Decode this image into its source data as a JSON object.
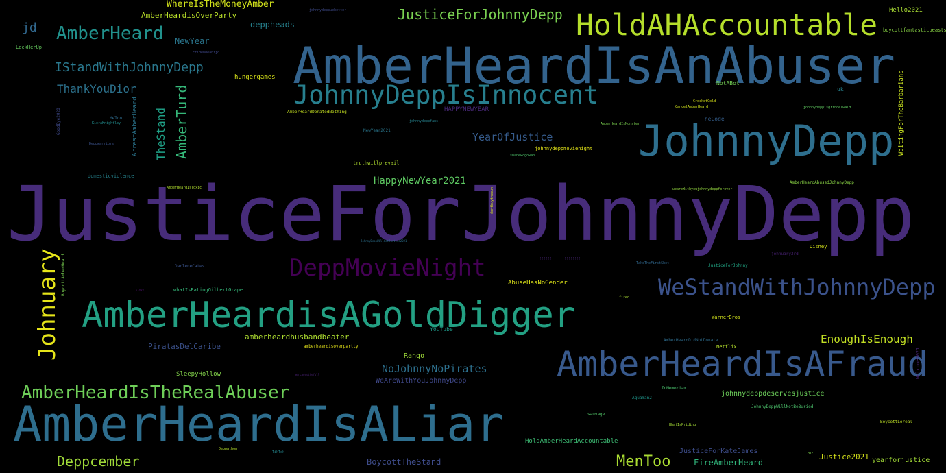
{
  "words": {
    "w0": {
      "text": "JusticeForJohnnyDepp",
      "color": "#472c7a"
    },
    "w1": {
      "text": "AmberHeardIsAnAbuser",
      "color": "#33638d"
    },
    "w2": {
      "text": "AmberHeardIsALiar",
      "color": "#2e6e8e"
    },
    "w3": {
      "text": "JohnnyDepp",
      "color": "#2e6f8e"
    },
    "w4": {
      "text": "AmberHeardisAGoldDigger",
      "color": "#23a083"
    },
    "w5": {
      "text": "AmberHeardIsAFraud",
      "color": "#38598c"
    },
    "w6": {
      "text": "HoldAHAccountable",
      "color": "#b5de2b"
    },
    "w7": {
      "text": "JohnnyDeppIsInnocent",
      "color": "#277f8e"
    },
    "w8": {
      "text": "WeStandWithJohnnyDepp",
      "color": "#3b528b"
    },
    "w9": {
      "text": "DeppMovieNight",
      "color": "#440154"
    },
    "w10": {
      "text": "AmberHeardIsTheRealAbuser",
      "color": "#6ece58"
    },
    "w11": {
      "text": "Johnuary",
      "color": "#e5e419"
    },
    "w12": {
      "text": "AmberHeard",
      "color": "#21918c"
    },
    "w13": {
      "text": "JusticeForJohnnyDepp",
      "color": "#7ad151"
    },
    "w14": {
      "text": "IStandWithJohnnyDepp",
      "color": "#2a788e"
    },
    "w15": {
      "text": "Deppcember",
      "color": "#a0da39"
    },
    "w16": {
      "text": "MenToo",
      "color": "#aadc32"
    },
    "w17": {
      "text": "AmberTurd",
      "color": "#35b779"
    },
    "w18": {
      "text": "TheStand",
      "color": "#1fa187"
    },
    "w19": {
      "text": "ThankYouDior",
      "color": "#2c728e"
    },
    "w20": {
      "text": "YearOfJustice",
      "color": "#365c8d"
    },
    "w21": {
      "text": "HappyNewYear2021",
      "color": "#5ec962"
    },
    "w22": {
      "text": "EnoughIsEnough",
      "color": "#c2df23"
    },
    "w23": {
      "text": "NoJohnnyNoPirates",
      "color": "#2d708e"
    },
    "w24": {
      "text": "jd",
      "color": "#31688e"
    },
    "w25": {
      "text": "WhereIsTheMoneyAmber",
      "color": "#d2e21b"
    },
    "w26": {
      "text": "AmberHeardisOverParty",
      "color": "#b8de29"
    },
    "w27": {
      "text": "NewYear",
      "color": "#2a768e"
    },
    "w28": {
      "text": "deppheads",
      "color": "#26818e"
    },
    "w29": {
      "text": "hungergames",
      "color": "#d8e219"
    },
    "w30": {
      "text": "BoycottTheStand",
      "color": "#3e4c8a"
    },
    "w31": {
      "text": "FireAmberHeard",
      "color": "#31b57b"
    },
    "w32": {
      "text": "Justice2021",
      "color": "#d5e21a"
    },
    "w33": {
      "text": "amberheardhusbandbeater",
      "color": "#addc30"
    },
    "w34": {
      "text": "PiratasDelCaribe",
      "color": "#3b518b"
    },
    "w35": {
      "text": "SleepyHollow",
      "color": "#84d44b"
    },
    "w36": {
      "text": "WeAreWithYouJohnnyDepp",
      "color": "#3f4889"
    },
    "w37": {
      "text": "Rango",
      "color": "#9fda3a"
    },
    "w38": {
      "text": "johnnydeppdeservesjustice",
      "color": "#6ccd5a"
    },
    "w39": {
      "text": "JusticeForKateJames",
      "color": "#3d4d8a"
    },
    "w40": {
      "text": "HoldAmberHeardAccountable",
      "color": "#3dbc74"
    },
    "w41": {
      "text": "yearforjustice",
      "color": "#a2da37"
    },
    "w42": {
      "text": "AbuseHasNoGender",
      "color": "#dde318"
    },
    "w43": {
      "text": "WaitingForTheBarbarians",
      "color": "#c8e020"
    },
    "w44": {
      "text": "ArrestAmberHeard",
      "color": "#2b758e"
    },
    "w45": {
      "text": "Hello2021",
      "color": "#a8db34"
    },
    "w46": {
      "text": "boycottfantasticbeasts",
      "color": "#8bd646"
    },
    "w47": {
      "text": "LockHerUp",
      "color": "#65cb5e"
    },
    "w48": {
      "text": "NotABot",
      "color": "#74d055"
    },
    "w49": {
      "text": "uk",
      "color": "#26828e"
    },
    "w50": {
      "text": "HAPPYNEWYEAR",
      "color": "#482878"
    },
    "w51": {
      "text": "TheCode",
      "color": "#355f8d"
    },
    "w52": {
      "text": "johnnydeppmovienight",
      "color": "#e2e418"
    },
    "w53": {
      "text": "AmberHeardDonatedNothing",
      "color": "#c5e021"
    },
    "w54": {
      "text": "NewYear2021",
      "color": "#2a778e"
    },
    "w55": {
      "text": "truthwillprevail",
      "color": "#b0dd2f"
    },
    "w56": {
      "text": "domesticviolence",
      "color": "#26838e"
    },
    "w57": {
      "text": "YouTube",
      "color": "#1f9a8a"
    },
    "w58": {
      "text": "Netflix",
      "color": "#b5de2b"
    },
    "w59": {
      "text": "WarnerBros",
      "color": "#d0e11c"
    },
    "w60": {
      "text": "Disney",
      "color": "#d5e21a"
    },
    "w61": {
      "text": "johnuary3rd",
      "color": "#482173"
    },
    "w62": {
      "text": "JusticeForJohnny",
      "color": "#21a685"
    },
    "w63": {
      "text": "AmberHeardAbusedJohnnyDepp",
      "color": "#8bd646"
    },
    "w64": {
      "text": "InMemoriam",
      "color": "#4ac16d"
    },
    "w65": {
      "text": "Aquaman2",
      "color": "#1f958b"
    },
    "w66": {
      "text": "sauvage",
      "color": "#52c569"
    },
    "w67": {
      "text": "JohnnyDeppWillNotBeBuried",
      "color": "#4cc26c"
    },
    "w68": {
      "text": "AmberHeardDidNotDonate",
      "color": "#2e6d8e"
    },
    "w69": {
      "text": "amberheardisoverpartty",
      "color": "#e5e419"
    },
    "w70": {
      "text": "BoycottLoreal",
      "color": "#bddf26"
    },
    "w71": {
      "text": "Welcome2021",
      "color": "#482677"
    },
    "w72": {
      "text": "BoycottAmberHeard",
      "color": "#7ad151"
    },
    "w73": {
      "text": "GoodBye2020",
      "color": "#3e4989"
    },
    "w74": {
      "text": "DarleneCates",
      "color": "#3a538b"
    },
    "w75": {
      "text": "whatIsEatingGilbertGrape",
      "color": "#35b779"
    },
    "w76": {
      "text": "shanewcgowan",
      "color": "#4ec36b"
    },
    "w77": {
      "text": "johnnydeppisgrindelwald",
      "color": "#60ca60"
    },
    "w78": {
      "text": "CrocketGold",
      "color": "#d8e219"
    },
    "w79": {
      "text": "CancelAmberHeard",
      "color": "#d0e11c"
    },
    "w80": {
      "text": "AmberHeardIsMonster",
      "color": "#7cd250"
    },
    "w81": {
      "text": "weareWithyoujohnnydeppforever",
      "color": "#95d840"
    },
    "w82": {
      "text": "AmberHeardIsToxic",
      "color": "#b0dd2f"
    },
    "w83": {
      "text": "WhatIsPriding",
      "color": "#a5db36"
    },
    "w84": {
      "text": "TakeTheFirstShot",
      "color": "#31688e"
    },
    "w85": {
      "text": "fired",
      "color": "#a8db34"
    },
    "w86": {
      "text": "Deppathon",
      "color": "#b5de2b"
    },
    "w87": {
      "text": "TikTok",
      "color": "#24868e"
    },
    "w88": {
      "text": "2021",
      "color": "#7fd34e"
    },
    "w89": {
      "text": "johnnydeppfans",
      "color": "#26828e"
    },
    "w90": {
      "text": "Deppwarriors",
      "color": "#3b528b"
    },
    "w91": {
      "text": "MeToo",
      "color": "#2f6c8e"
    },
    "w92": {
      "text": "KieraKnightley",
      "color": "#228c8d"
    },
    "w93": {
      "text": "johnnydeppwebetter",
      "color": "#3e4a89"
    },
    "w94": {
      "text": "Fridendeanijo",
      "color": "#3f4788"
    },
    "w95": {
      "text": "JohnnyDeppWillGetJustice2021",
      "color": "#2d718e"
    },
    "w96": {
      "text": "dontbuytheeun",
      "color": "#d8e219"
    },
    "w97": {
      "text": "!!!!!!!!!!!!!!!!!!!!",
      "color": "#482475"
    },
    "w98": {
      "text": "mercadesthefull",
      "color": "#482173"
    },
    "w99": {
      "text": "steve",
      "color": "#471063"
    }
  }
}
